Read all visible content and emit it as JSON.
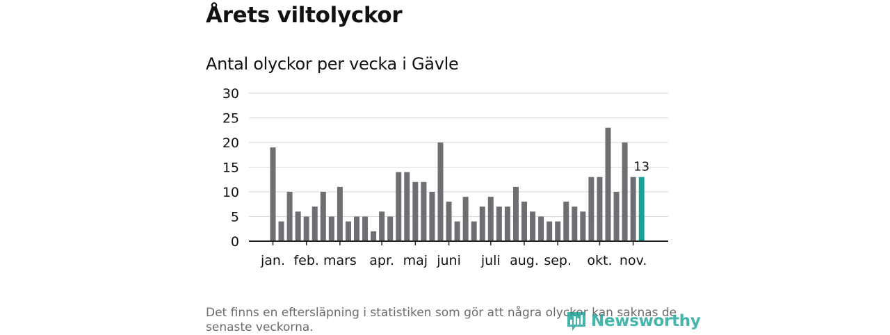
{
  "title": "Årets viltolyckor",
  "subtitle": "Antal olyckor per vecka i Gävle",
  "footnote": "Det finns en eftersläpning i statistiken som gör att några olyckor kan saknas de senaste veckorna.",
  "logo_text": "Newsworthy",
  "colors": {
    "bar": "#6f6e73",
    "highlight": "#17a398",
    "grid": "#dddddd",
    "axis": "#222222",
    "text": "#111111"
  },
  "chart_data": {
    "type": "bar",
    "title": "Antal olyckor per vecka i Gävle",
    "xlabel": "",
    "ylabel": "",
    "ylim": [
      0,
      30
    ],
    "yticks": [
      0,
      5,
      10,
      15,
      20,
      25,
      30
    ],
    "values": [
      19,
      4,
      10,
      6,
      5,
      7,
      10,
      5,
      11,
      4,
      5,
      5,
      2,
      6,
      5,
      14,
      14,
      12,
      12,
      10,
      20,
      8,
      4,
      9,
      4,
      7,
      9,
      7,
      7,
      11,
      8,
      6,
      5,
      4,
      4,
      8,
      7,
      6,
      13,
      13,
      23,
      10,
      20,
      13,
      13
    ],
    "highlight_index": 44,
    "highlight_label": "13",
    "month_labels": [
      {
        "label": "jan.",
        "bar_index": 0
      },
      {
        "label": "feb.",
        "bar_index": 4
      },
      {
        "label": "mars",
        "bar_index": 8
      },
      {
        "label": "apr.",
        "bar_index": 13
      },
      {
        "label": "maj",
        "bar_index": 17
      },
      {
        "label": "juni",
        "bar_index": 21
      },
      {
        "label": "juli",
        "bar_index": 26
      },
      {
        "label": "aug.",
        "bar_index": 30
      },
      {
        "label": "sep.",
        "bar_index": 34
      },
      {
        "label": "okt.",
        "bar_index": 39
      },
      {
        "label": "nov.",
        "bar_index": 43
      }
    ]
  }
}
